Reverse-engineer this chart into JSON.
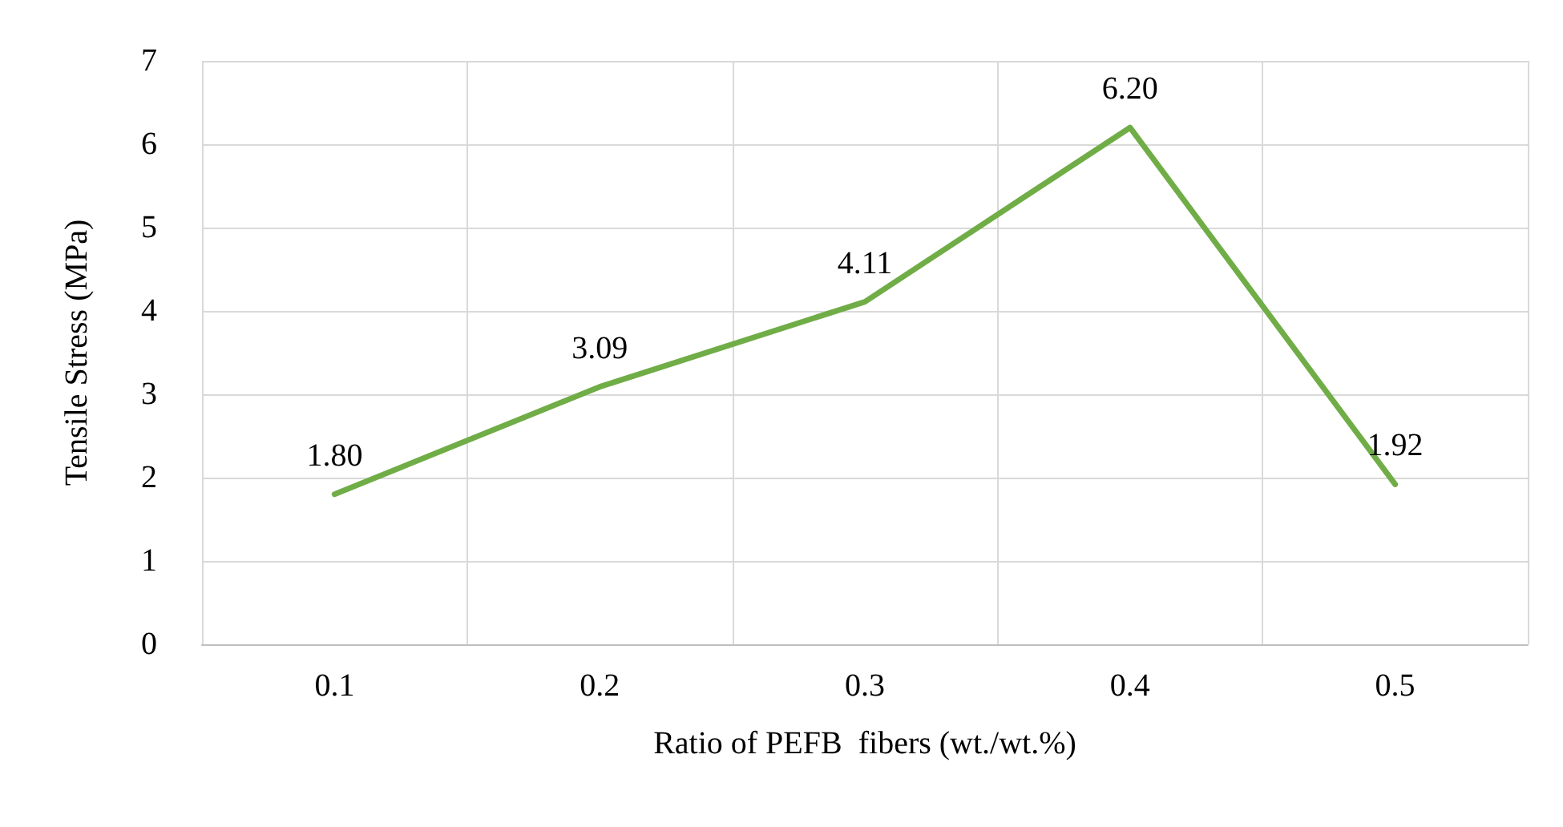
{
  "chart_data": {
    "type": "line",
    "xlabel": "Ratio of PEFB  fibers (wt./wt.%)",
    "ylabel": "Tensile Stress (MPa)",
    "categories": [
      "0.1",
      "0.2",
      "0.3",
      "0.4",
      "0.5"
    ],
    "series": [
      {
        "color": "#70ad47",
        "values": [
          1.8,
          3.09,
          4.11,
          6.2,
          1.92
        ],
        "value_labels": [
          "1.80",
          "3.09",
          "4.11",
          "6.20",
          "1.92"
        ]
      }
    ],
    "ylim": [
      0,
      7
    ],
    "yticks": [
      0,
      1,
      2,
      3,
      4,
      5,
      6,
      7
    ],
    "grid": true,
    "marker": "none",
    "line_style": "solid"
  }
}
